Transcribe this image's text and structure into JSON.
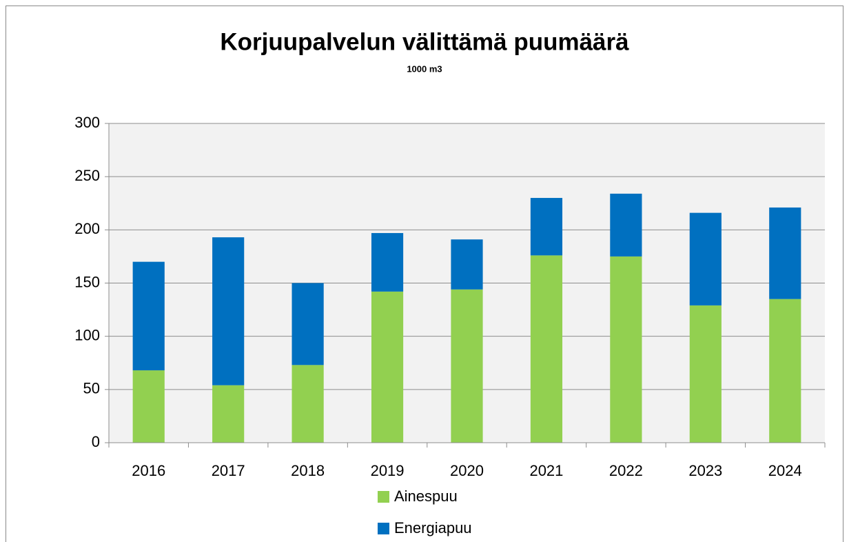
{
  "chart_data": {
    "type": "stacked_bar",
    "title": "Korjuupalvelun välittämä puumäärä",
    "subtitle": "1000 m3",
    "categories": [
      "2016",
      "2017",
      "2018",
      "2019",
      "2020",
      "2021",
      "2022",
      "2023",
      "2024"
    ],
    "series": [
      {
        "name": "Ainespuu",
        "color": "#92d050",
        "values": [
          68,
          54,
          73,
          142,
          144,
          176,
          175,
          129,
          135
        ]
      },
      {
        "name": "Energiapuu",
        "color": "#0070c0",
        "values": [
          102,
          139,
          77,
          55,
          47,
          54,
          59,
          87,
          86
        ]
      }
    ],
    "ylim": [
      0,
      300
    ],
    "yticks": [
      0,
      50,
      100,
      150,
      200,
      250,
      300
    ],
    "grid": true
  }
}
